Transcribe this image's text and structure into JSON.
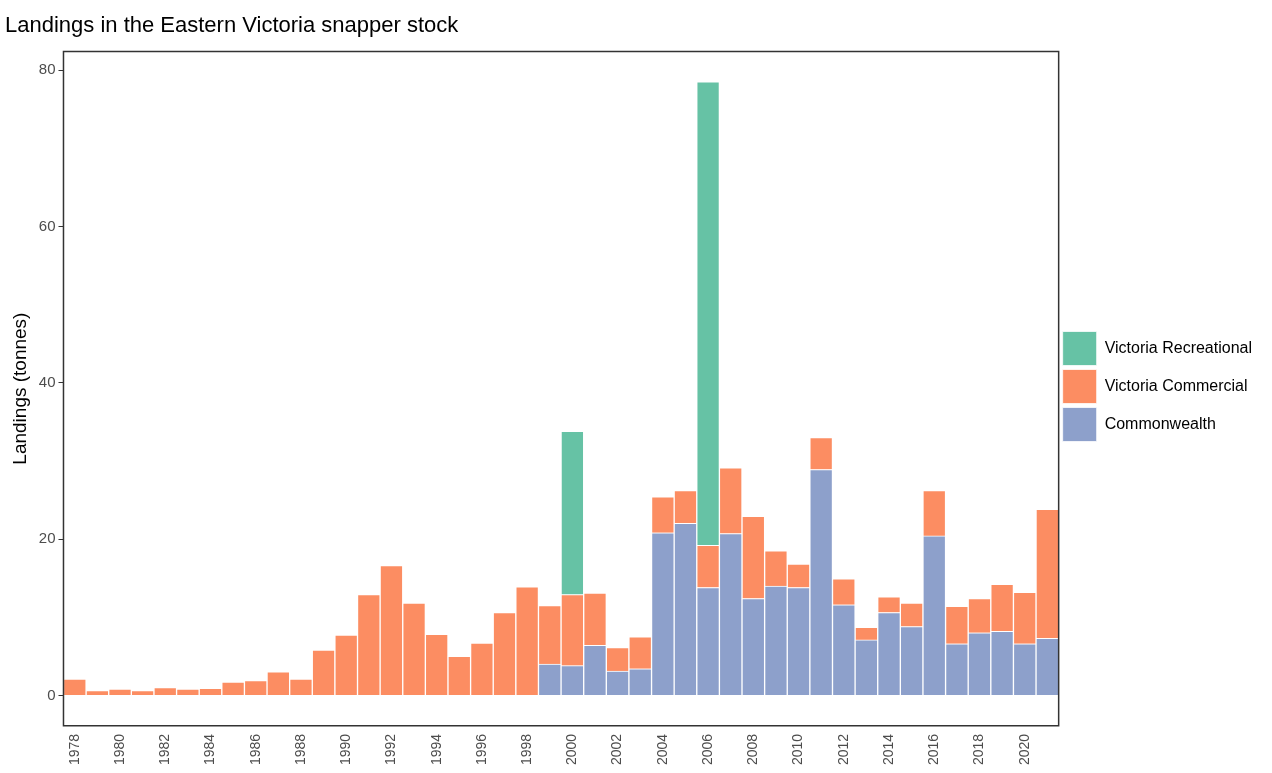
{
  "chart_data": {
    "type": "bar",
    "title": "Landings in the Eastern Victoria snapper stock",
    "ylabel": "Landings (tonnes)",
    "categories": [
      "1978",
      null,
      "1980",
      null,
      "1982",
      null,
      "1984",
      null,
      "1986",
      null,
      "1988",
      null,
      "1990",
      null,
      "1992",
      null,
      "1994",
      null,
      "1996",
      null,
      "1998",
      null,
      "2000",
      null,
      "2002",
      null,
      "2004",
      null,
      "2006",
      null,
      "2008",
      null,
      "2010",
      null,
      "2012",
      null,
      "2014",
      null,
      "2016",
      null,
      "2018",
      null,
      "2020",
      null
    ],
    "stacked": true,
    "series": [
      {
        "name": "Commonwealth",
        "color": "#8da0cb",
        "values": [
          null,
          null,
          null,
          null,
          null,
          null,
          null,
          null,
          null,
          null,
          null,
          null,
          null,
          null,
          null,
          null,
          null,
          null,
          null,
          null,
          null,
          4.0,
          3.8,
          6.4,
          3.1,
          3.4,
          20.8,
          22.0,
          13.8,
          20.7,
          12.4,
          14.0,
          13.8,
          28.9,
          11.6,
          7.1,
          10.6,
          8.8,
          20.4,
          6.6,
          8.0,
          8.2,
          6.6,
          7.3
        ]
      },
      {
        "name": "Victoria Commercial",
        "color": "#fc8d62",
        "values": [
          2.1,
          0.6,
          0.8,
          0.6,
          1.0,
          0.8,
          0.9,
          1.7,
          1.9,
          3.0,
          2.1,
          5.8,
          7.7,
          12.9,
          16.6,
          11.8,
          7.8,
          5.0,
          6.7,
          10.6,
          13.9,
          7.5,
          9.1,
          6.7,
          3.0,
          4.1,
          4.6,
          4.2,
          5.4,
          8.4,
          10.5,
          4.5,
          3.0,
          4.1,
          3.3,
          1.6,
          2.0,
          3.0,
          5.8,
          4.8,
          4.4,
          6.0,
          6.6,
          16.5
        ]
      },
      {
        "name": "Victoria Recreational",
        "color": "#66c2a5",
        "values": [
          null,
          null,
          null,
          null,
          null,
          null,
          null,
          null,
          null,
          null,
          null,
          null,
          null,
          null,
          null,
          null,
          null,
          null,
          null,
          null,
          null,
          null,
          20.9,
          null,
          null,
          null,
          null,
          null,
          59.3,
          null,
          null,
          null,
          null,
          null,
          null,
          null,
          null,
          null,
          null,
          null,
          null,
          null,
          null,
          null
        ]
      }
    ],
    "ylim": [
      -3.9,
      82.4
    ],
    "yticks": [
      0,
      20,
      40,
      60,
      80
    ],
    "grid": false,
    "legend": "right"
  }
}
